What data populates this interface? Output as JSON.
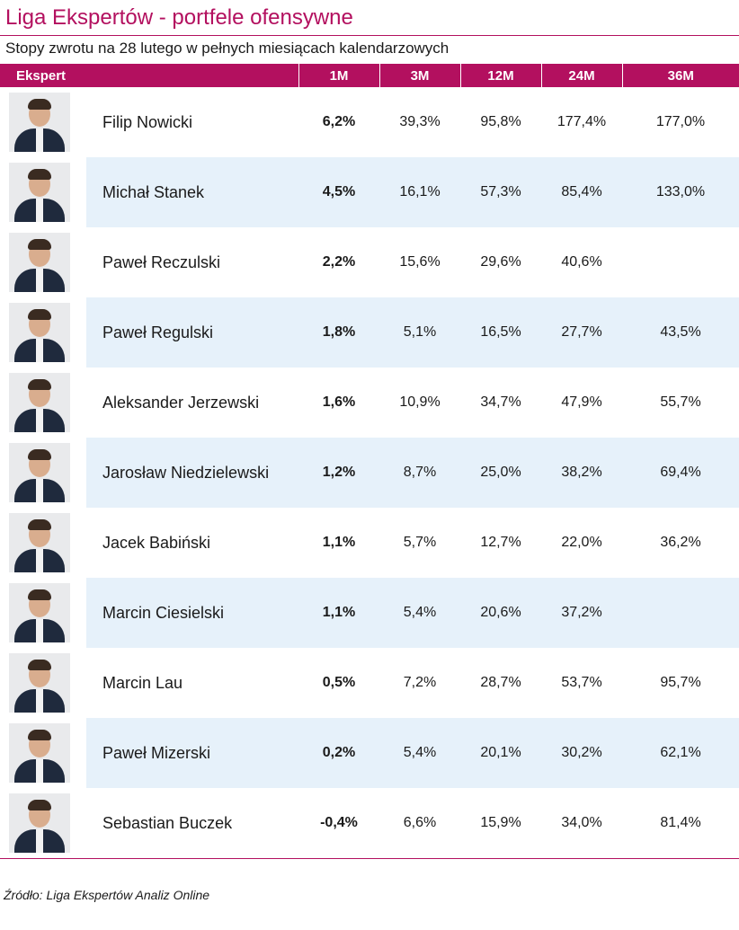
{
  "title": "Liga Ekspertów - portfele ofensywne",
  "subtitle": "Stopy zwrotu na 28 lutego w pełnych miesiącach kalendarzowych",
  "colors": {
    "accent": "#b3105f",
    "row_alt": "#e6f1fa"
  },
  "source": "Źródło: Liga Ekspertów Analiz Online",
  "chart_data": {
    "type": "table",
    "columns": [
      "Ekspert",
      "1M",
      "3M",
      "12M",
      "24M",
      "36M"
    ],
    "rows": [
      {
        "name": "Filip Nowicki",
        "values": [
          "6,2%",
          "39,3%",
          "95,8%",
          "177,4%",
          "177,0%"
        ]
      },
      {
        "name": "Michał Stanek",
        "values": [
          "4,5%",
          "16,1%",
          "57,3%",
          "85,4%",
          "133,0%"
        ]
      },
      {
        "name": "Paweł Reczulski",
        "values": [
          "2,2%",
          "15,6%",
          "29,6%",
          "40,6%",
          ""
        ]
      },
      {
        "name": "Paweł Regulski",
        "values": [
          "1,8%",
          "5,1%",
          "16,5%",
          "27,7%",
          "43,5%"
        ]
      },
      {
        "name": "Aleksander Jerzewski",
        "values": [
          "1,6%",
          "10,9%",
          "34,7%",
          "47,9%",
          "55,7%"
        ]
      },
      {
        "name": "Jarosław Niedzielewski",
        "values": [
          "1,2%",
          "8,7%",
          "25,0%",
          "38,2%",
          "69,4%"
        ]
      },
      {
        "name": "Jacek Babiński",
        "values": [
          "1,1%",
          "5,7%",
          "12,7%",
          "22,0%",
          "36,2%"
        ]
      },
      {
        "name": "Marcin Ciesielski",
        "values": [
          "1,1%",
          "5,4%",
          "20,6%",
          "37,2%",
          ""
        ]
      },
      {
        "name": "Marcin Lau",
        "values": [
          "0,5%",
          "7,2%",
          "28,7%",
          "53,7%",
          "95,7%"
        ]
      },
      {
        "name": "Paweł Mizerski",
        "values": [
          "0,2%",
          "5,4%",
          "20,1%",
          "30,2%",
          "62,1%"
        ]
      },
      {
        "name": "Sebastian Buczek",
        "values": [
          "-0,4%",
          "6,6%",
          "15,9%",
          "34,0%",
          "81,4%"
        ]
      }
    ]
  }
}
